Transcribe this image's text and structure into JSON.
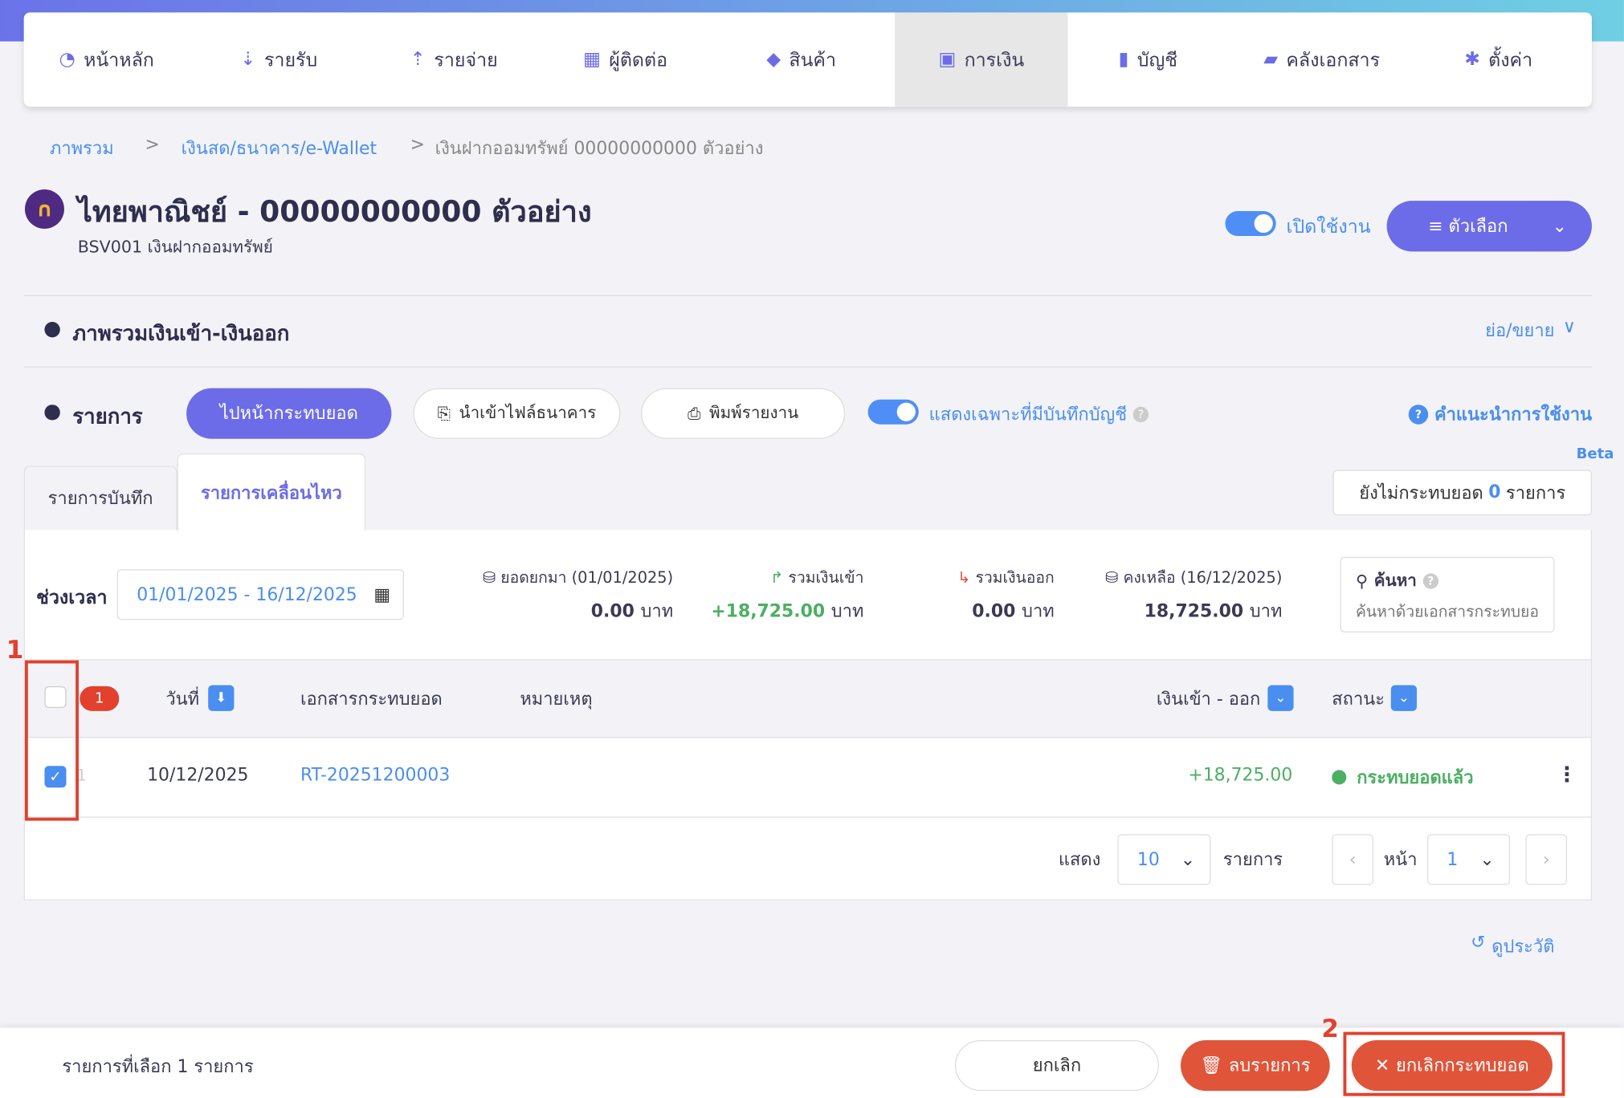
{
  "nav": {
    "items": [
      {
        "label": "หน้าหลัก",
        "icon": "dashboard-icon"
      },
      {
        "label": "รายรับ",
        "icon": "income-icon"
      },
      {
        "label": "รายจ่าย",
        "icon": "expense-icon"
      },
      {
        "label": "ผู้ติดต่อ",
        "icon": "contacts-icon"
      },
      {
        "label": "สินค้า",
        "icon": "box-icon"
      },
      {
        "label": "การเงิน",
        "icon": "money-icon",
        "active": true
      },
      {
        "label": "บัญชี",
        "icon": "ledger-icon"
      },
      {
        "label": "คลังเอกสาร",
        "icon": "folder-icon"
      },
      {
        "label": "ตั้งค่า",
        "icon": "gear-icon"
      }
    ]
  },
  "breadcrumb": [
    "ภาพรวม",
    "เงินสด/ธนาคาร/e-Wallet",
    "เงินฝากออมทรัพย์ 00000000000 ตัวอย่าง"
  ],
  "breadcrumb_sep": ">",
  "header": {
    "title": "ไทยพาณิชย์ - 00000000000 ตัวอย่าง",
    "subtitle": "BSV001 เงินฝากออมทรัพย์",
    "toggle_label": "เปิดใช้งาน",
    "toggle_on": true,
    "options_label": "≡ ตัวเลือก"
  },
  "overview": {
    "title": "ภาพรวมเงินเข้า-เงินออก",
    "collapse_label": "ย่อ/ขยาย"
  },
  "list": {
    "title": "รายการ",
    "reconcile_btn": "ไปหน้ากระทบยอด",
    "import_btn": "นำเข้าไฟล์ธนาคาร",
    "print_btn": "พิมพ์รายงาน",
    "filter_toggle_label": "แสดงเฉพาะที่มีบันทึกบัญชี",
    "filter_toggle_on": true,
    "help_label": "คำแนะนำการใช้งาน",
    "beta": "Beta"
  },
  "tabs": [
    {
      "label": "รายการบันทึก"
    },
    {
      "label": "รายการเคลื่อนไหว",
      "active": true
    }
  ],
  "unreconciled": {
    "prefix": "ยังไม่กระทบยอด",
    "count": "0",
    "suffix": "รายการ"
  },
  "filter": {
    "period_label": "ช่วงเวลา",
    "period_value": "01/01/2025 - 16/12/2025",
    "search_label": "ค้นหา",
    "search_placeholder": "ค้นหาด้วยเอกสารกระทบยอด"
  },
  "summary": [
    {
      "label": "ยอดยกมา (01/01/2025)",
      "value": "0.00",
      "unit": "บาท"
    },
    {
      "label": "รวมเงินเข้า",
      "value": "+18,725.00",
      "unit": "บาท",
      "color": "#4caf63"
    },
    {
      "label": "รวมเงินออก",
      "value": "0.00",
      "unit": "บาท"
    },
    {
      "label": "คงเหลือ (16/12/2025)",
      "value": "18,725.00",
      "unit": "บาท"
    }
  ],
  "table": {
    "selected_badge": "1",
    "columns": [
      "วันที่",
      "เอกสารกระทบยอด",
      "หมายเหตุ",
      "เงินเข้า - ออก",
      "สถานะ"
    ],
    "rows": [
      {
        "index": "1",
        "date": "10/12/2025",
        "doc": "RT-20251200003",
        "note": "",
        "amount": "+18,725.00",
        "status": "กระทบยอดแล้ว",
        "checked": true
      }
    ]
  },
  "pagination": {
    "show_label": "แสดง",
    "page_size": "10",
    "items_label": "รายการ",
    "page_label": "หน้า",
    "page": "1"
  },
  "history_label": "ดูประวัติ",
  "annotations": [
    "1",
    "2"
  ],
  "bottom_bar": {
    "selected_text": "รายการที่เลือก 1 รายการ",
    "cancel": "ยกเลิก",
    "delete": "ลบรายการ",
    "unreconcile": "ยกเลิกกระทบยอด"
  }
}
